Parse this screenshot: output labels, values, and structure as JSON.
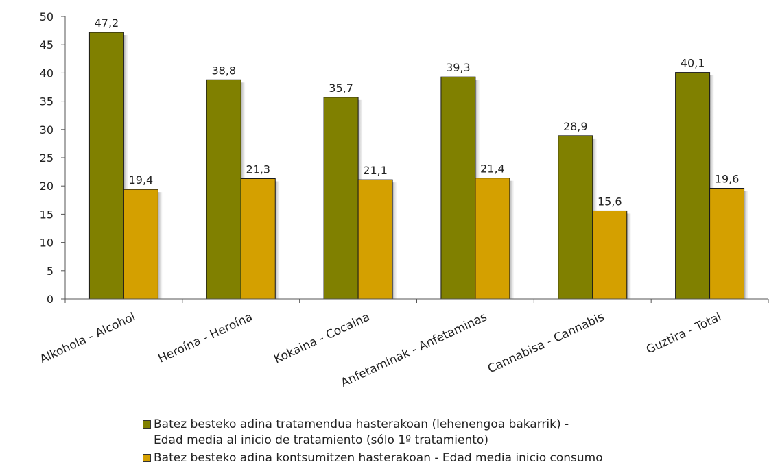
{
  "chart_data": {
    "type": "bar",
    "title": "",
    "xlabel": "",
    "ylabel": "",
    "ylim": [
      0,
      50
    ],
    "yticks": [
      0,
      5,
      10,
      15,
      20,
      25,
      30,
      35,
      40,
      45,
      50
    ],
    "grid": false,
    "legend_position": "bottom",
    "categories": [
      "Alkohola - Alcohol",
      "Heroína - Heroína",
      "Kokaina - Cocaina",
      "Anfetaminak - Anfetaminas",
      "Cannabisa - Cannabis",
      "Guztira - Total"
    ],
    "series": [
      {
        "name": "Batez besteko adina tratamendua hasterakoan (lehenengoa bakarrik) -\nEdad media al inicio de tratamiento (sólo 1º tratamiento)",
        "values": [
          47.2,
          38.8,
          35.7,
          39.3,
          28.9,
          40.1
        ],
        "labels": [
          "47,2",
          "38,8",
          "35,7",
          "39,3",
          "28,9",
          "40,1"
        ],
        "color": "#808000"
      },
      {
        "name": "Batez besteko adina kontsumitzen hasterakoan - Edad media inicio consumo",
        "values": [
          19.4,
          21.3,
          21.1,
          21.4,
          15.6,
          19.6
        ],
        "labels": [
          "19,4",
          "21,3",
          "21,1",
          "21,4",
          "15,6",
          "19,6"
        ],
        "color": "#D4A000"
      }
    ]
  }
}
